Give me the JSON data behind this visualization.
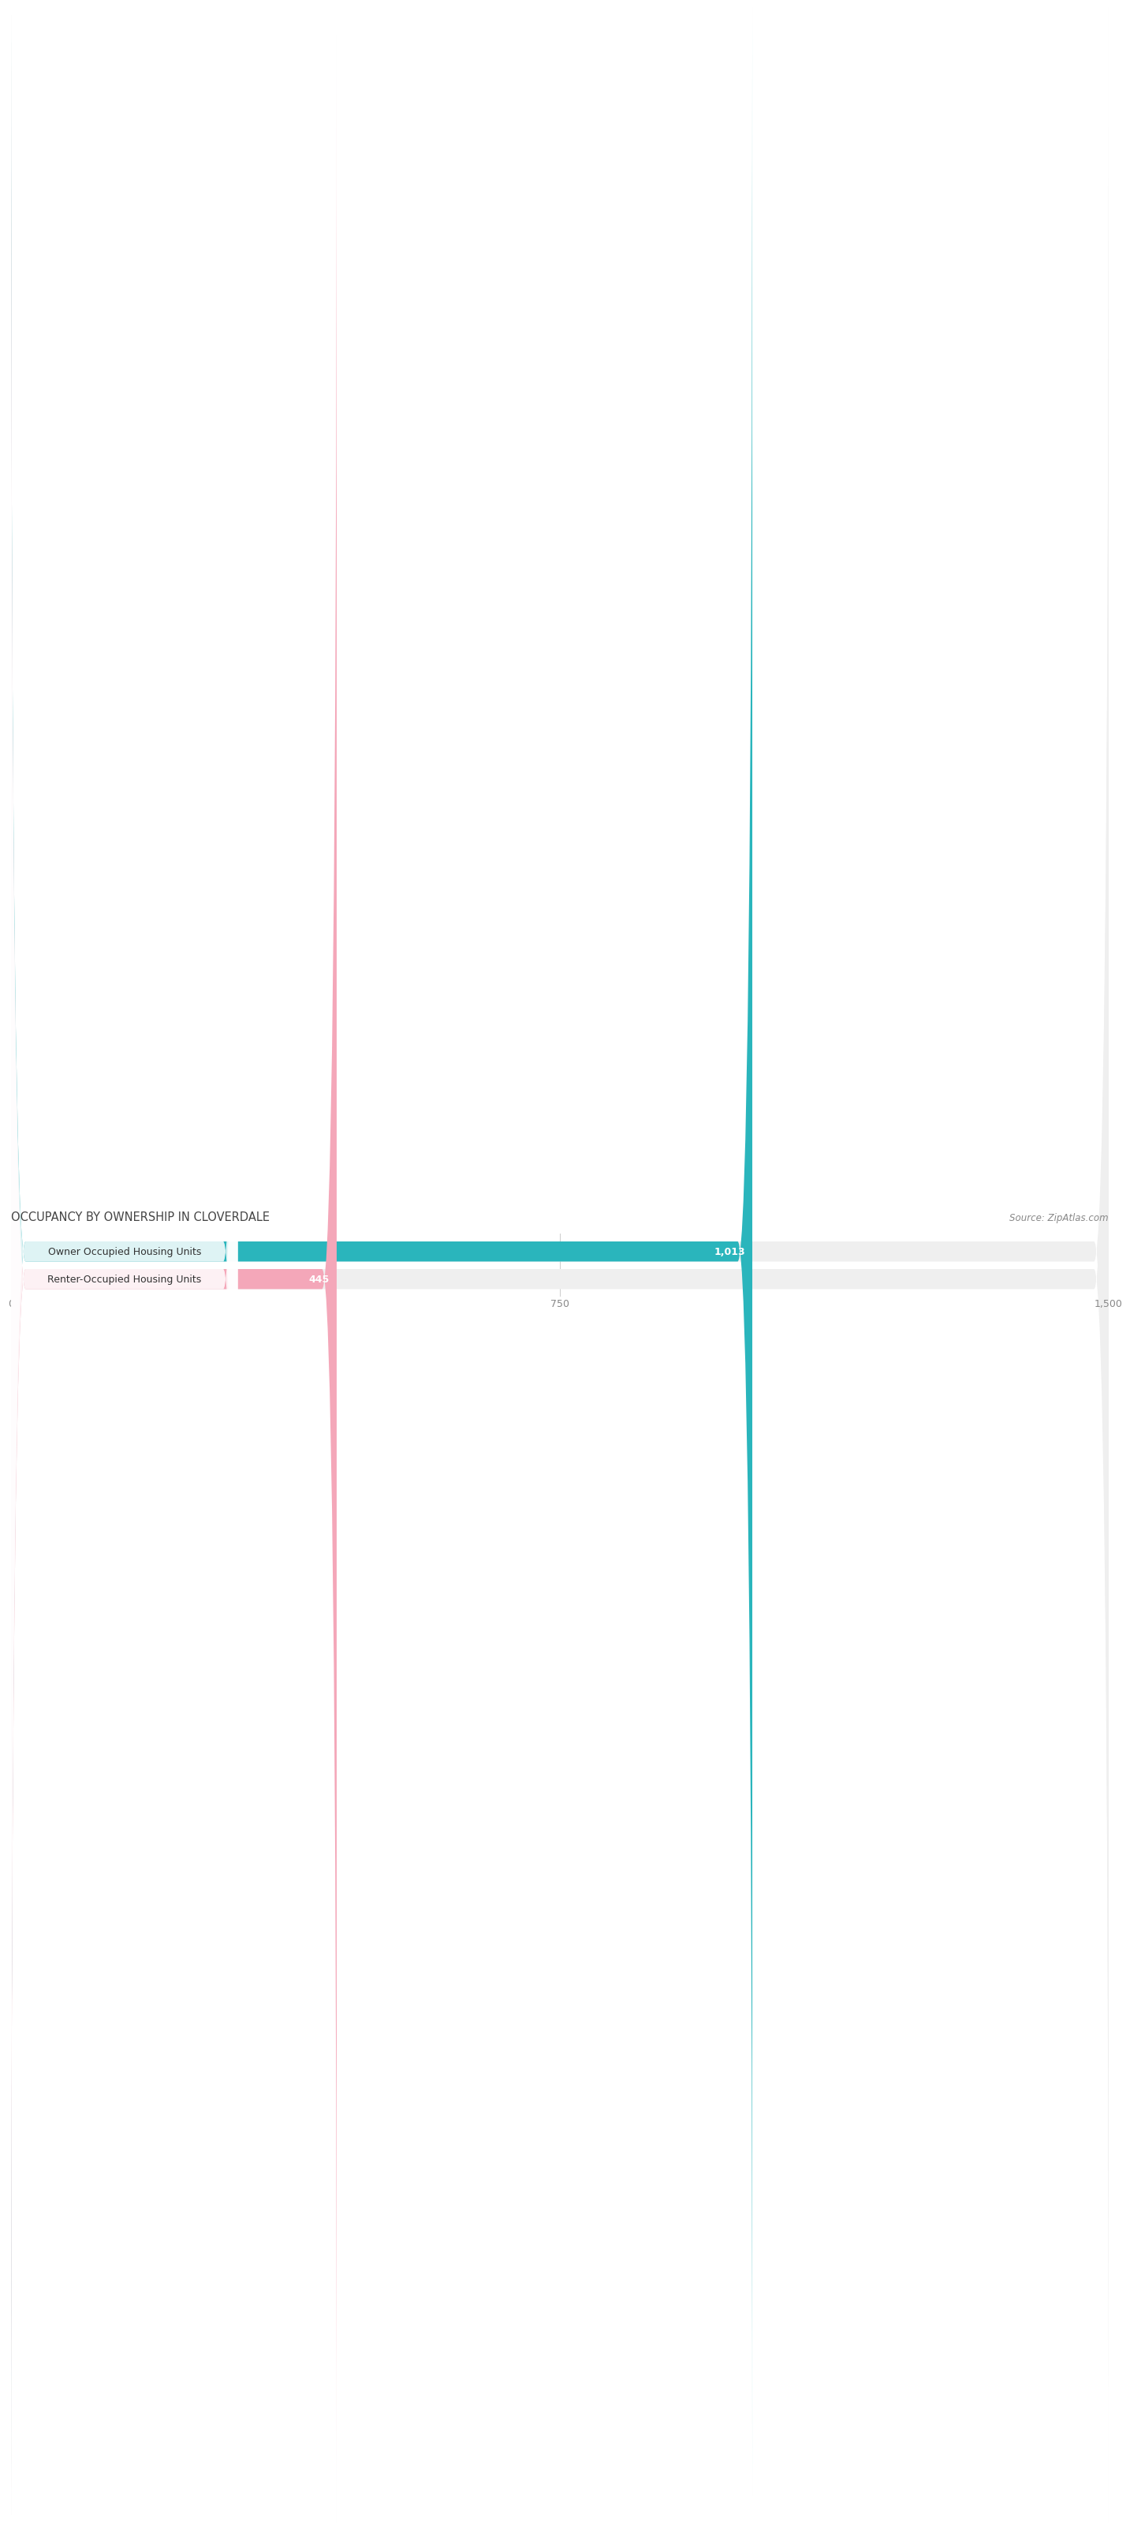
{
  "title": "OCCUPANCY BY OWNERSHIP IN CLOVERDALE",
  "source": "Source: ZipAtlas.com",
  "categories": [
    "Owner Occupied Housing Units",
    "Renter-Occupied Housing Units"
  ],
  "values": [
    1013,
    445
  ],
  "bar_colors": [
    "#2ab5bc",
    "#f4a7b9"
  ],
  "bar_bg_color": "#efefef",
  "xlim": [
    0,
    1500
  ],
  "xticks": [
    0,
    750,
    1500
  ],
  "xtick_labels": [
    "0",
    "750",
    "1,500"
  ],
  "value_labels": [
    "1,013",
    "445"
  ],
  "title_fontsize": 10.5,
  "source_fontsize": 8.5,
  "bar_label_fontsize": 9,
  "value_label_fontsize": 9,
  "tick_fontsize": 9
}
